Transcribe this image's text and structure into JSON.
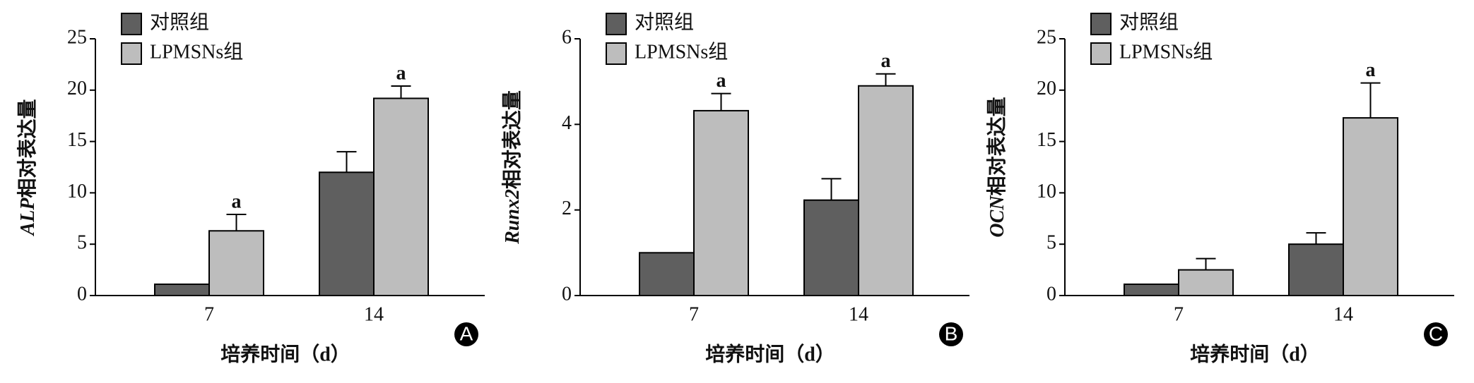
{
  "chart_data": [
    {
      "type": "bar",
      "panel": "A",
      "y_label_gene": "ALP",
      "y_label": "相对表达量",
      "x_label": "培养时间（d）",
      "categories": [
        "7",
        "14"
      ],
      "ylim": [
        0,
        25
      ],
      "yticks": [
        0,
        5,
        10,
        15,
        20,
        25
      ],
      "series": [
        {
          "name": "对照组",
          "color": "#5f5f5f",
          "values": [
            1.1,
            12.0
          ],
          "errors": [
            null,
            2.0
          ],
          "annotations": [
            null,
            null
          ]
        },
        {
          "name": "LPMSNs组",
          "color": "#bdbdbd",
          "values": [
            6.3,
            19.2
          ],
          "errors": [
            1.6,
            1.2
          ],
          "annotations": [
            "a",
            "a"
          ]
        }
      ]
    },
    {
      "type": "bar",
      "panel": "B",
      "y_label_gene": "Runx2",
      "y_label": "相对表达量",
      "x_label": "培养时间（d）",
      "categories": [
        "7",
        "14"
      ],
      "ylim": [
        0,
        6
      ],
      "yticks": [
        0,
        2,
        4,
        6
      ],
      "series": [
        {
          "name": "对照组",
          "color": "#5f5f5f",
          "values": [
            1.0,
            2.23
          ],
          "errors": [
            null,
            0.5
          ],
          "annotations": [
            null,
            null
          ]
        },
        {
          "name": "LPMSNs组",
          "color": "#bdbdbd",
          "values": [
            4.32,
            4.9
          ],
          "errors": [
            0.4,
            0.28
          ],
          "annotations": [
            "a",
            "a"
          ]
        }
      ]
    },
    {
      "type": "bar",
      "panel": "C",
      "y_label_gene": "OCN",
      "y_label": "相对表达量",
      "x_label": "培养时间（d）",
      "categories": [
        "7",
        "14"
      ],
      "ylim": [
        0,
        25
      ],
      "yticks": [
        0,
        5,
        10,
        15,
        20,
        25
      ],
      "series": [
        {
          "name": "对照组",
          "color": "#5f5f5f",
          "values": [
            1.1,
            5.0
          ],
          "errors": [
            null,
            1.1
          ],
          "annotations": [
            null,
            null
          ]
        },
        {
          "name": "LPMSNs组",
          "color": "#bdbdbd",
          "values": [
            2.5,
            17.3
          ],
          "errors": [
            1.1,
            3.4
          ],
          "annotations": [
            null,
            "a"
          ]
        }
      ]
    }
  ]
}
